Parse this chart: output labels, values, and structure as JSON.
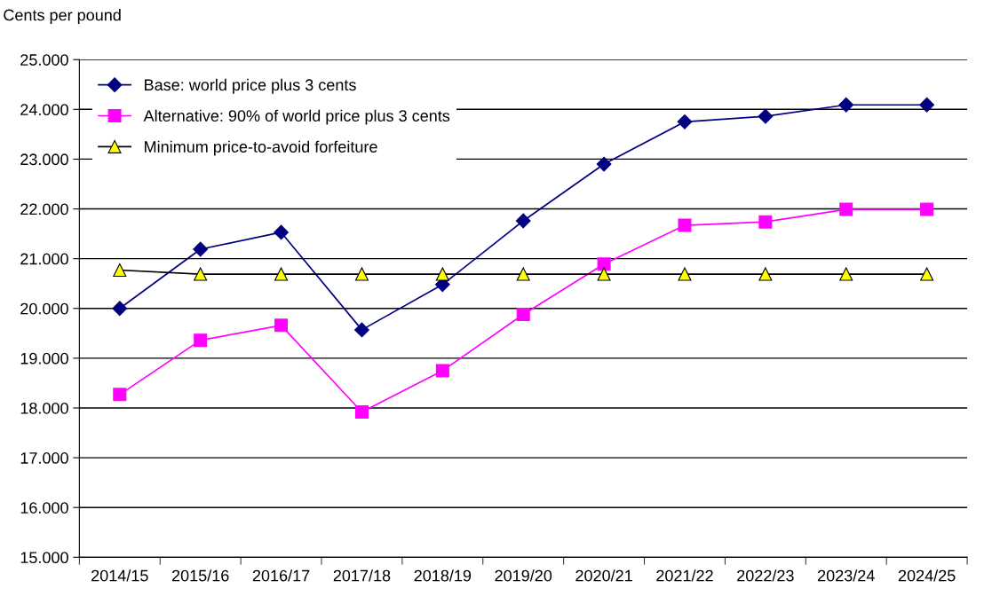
{
  "chart_data": {
    "type": "line",
    "ylabel": "Cents per pound",
    "categories": [
      "2014/15",
      "2015/16",
      "2016/17",
      "2017/18",
      "2018/19",
      "2019/20",
      "2020/21",
      "2021/22",
      "2022/23",
      "2023/24",
      "2024/25"
    ],
    "series": [
      {
        "name": "Base: world price plus 3 cents",
        "color": "#000080",
        "marker": "diamond",
        "values": [
          20.0,
          21.19,
          21.53,
          19.57,
          20.48,
          21.76,
          22.9,
          23.75,
          23.86,
          24.09,
          24.09
        ]
      },
      {
        "name": "Alternative: 90% of world price plus 3 cents",
        "color": "#ff00ff",
        "marker": "square",
        "values": [
          18.27,
          19.36,
          19.66,
          17.92,
          18.75,
          19.88,
          20.89,
          21.67,
          21.74,
          21.99,
          21.99
        ]
      },
      {
        "name": "Minimum price-to-avoid forfeiture",
        "color": "#000000",
        "colors": [
          "#ffff00",
          "#ffff00",
          "#ffff00",
          "#ffff00",
          "#ffff00",
          "#ffff00",
          "#ffff00",
          "#ffff00",
          "#ffff00",
          "#ffff00",
          "#ffff00"
        ],
        "marker": "triangle",
        "values": [
          20.77,
          20.69,
          20.69,
          20.69,
          20.69,
          20.69,
          20.69,
          20.69,
          20.69,
          20.69,
          20.69
        ]
      }
    ],
    "ylim": [
      15,
      25
    ],
    "yticks": [
      {
        "value": 15,
        "label": "15.000"
      },
      {
        "value": 16,
        "label": "16.000"
      },
      {
        "value": 17,
        "label": "17.000"
      },
      {
        "value": 18,
        "label": "18.000"
      },
      {
        "value": 19,
        "label": "19.000"
      },
      {
        "value": 20,
        "label": "20.000"
      },
      {
        "value": 21,
        "label": "21.000"
      },
      {
        "value": 22,
        "label": "22.000"
      },
      {
        "value": 23,
        "label": "23.000"
      },
      {
        "value": 24,
        "label": "24.000"
      },
      {
        "value": 25,
        "label": "25.000"
      }
    ],
    "grid": "y",
    "legend": "top left"
  }
}
